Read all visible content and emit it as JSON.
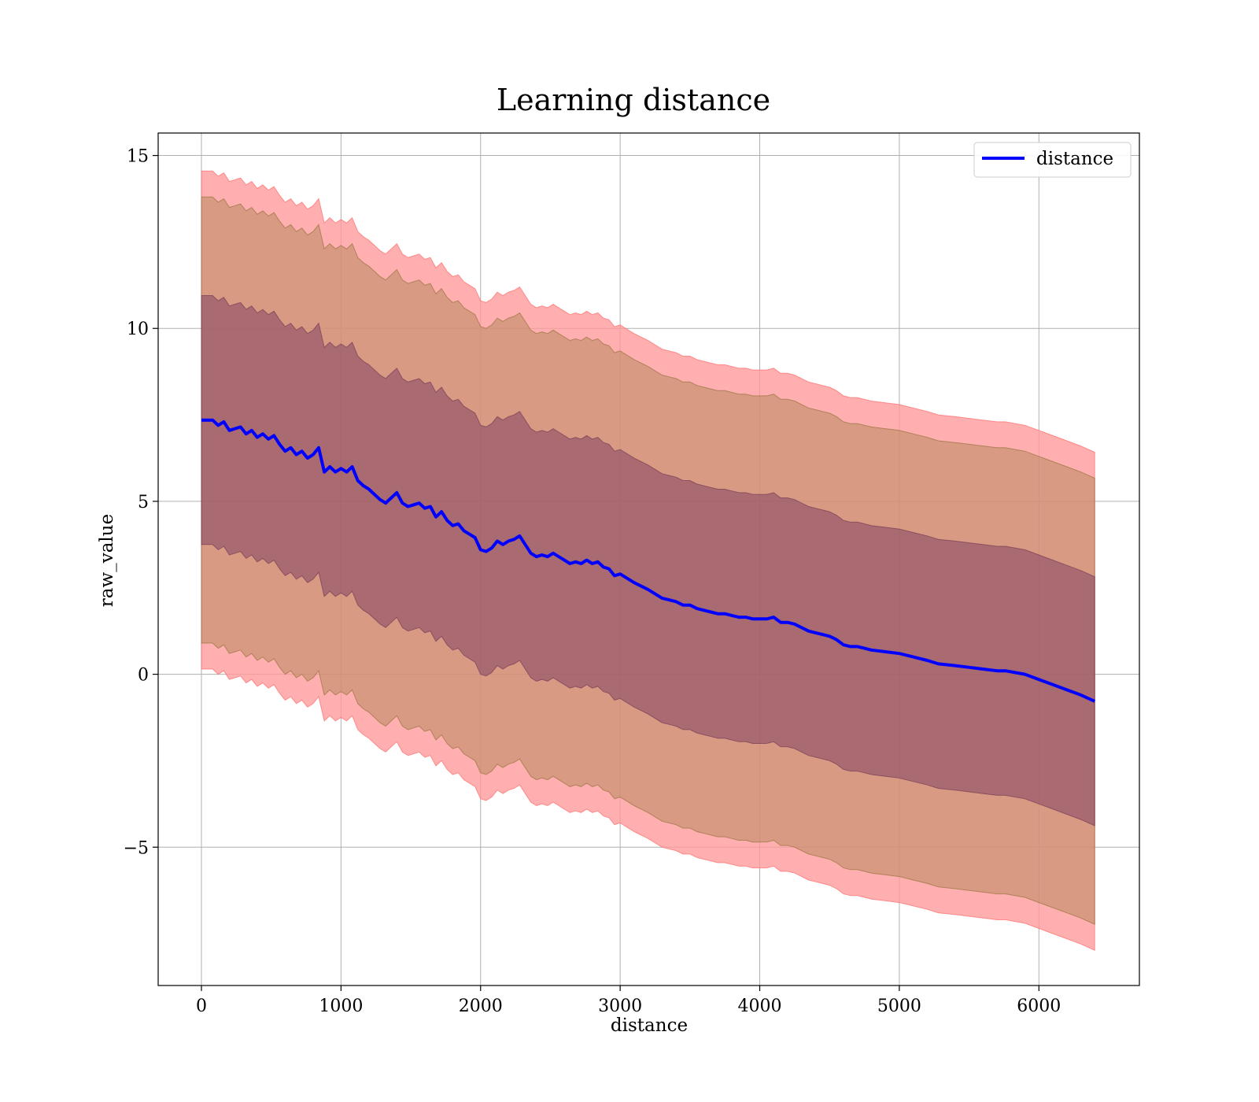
{
  "chart_data": {
    "type": "line",
    "title": "Learning distance",
    "xlabel": "distance",
    "ylabel": "raw_value",
    "xlim": [
      -310,
      6720
    ],
    "ylim": [
      -9,
      15.65
    ],
    "xticks": [
      0,
      1000,
      2000,
      3000,
      4000,
      5000,
      6000
    ],
    "yticks": [
      -5,
      0,
      5,
      10,
      15
    ],
    "ytick_labels": [
      "−5",
      "0",
      "5",
      "10",
      "15"
    ],
    "grid": true,
    "legend": {
      "position": "top-right",
      "entries": [
        {
          "label": "distance",
          "color": "#0000ff"
        }
      ]
    },
    "series": [
      {
        "name": "distance",
        "color": "#0000ff",
        "x": [
          0,
          80,
          120,
          160,
          200,
          240,
          280,
          320,
          360,
          400,
          440,
          480,
          520,
          560,
          600,
          640,
          680,
          720,
          760,
          800,
          840,
          880,
          920,
          960,
          1000,
          1040,
          1080,
          1120,
          1160,
          1200,
          1240,
          1280,
          1320,
          1360,
          1400,
          1440,
          1480,
          1520,
          1560,
          1600,
          1640,
          1680,
          1720,
          1760,
          1800,
          1840,
          1880,
          1920,
          1960,
          2000,
          2040,
          2080,
          2120,
          2160,
          2200,
          2240,
          2280,
          2320,
          2360,
          2400,
          2440,
          2480,
          2520,
          2560,
          2600,
          2640,
          2680,
          2720,
          2760,
          2800,
          2840,
          2880,
          2920,
          2960,
          3000,
          3040,
          3100,
          3200,
          3300,
          3350,
          3400,
          3450,
          3500,
          3550,
          3600,
          3650,
          3700,
          3750,
          3800,
          3850,
          3900,
          3950,
          4000,
          4050,
          4100,
          4150,
          4200,
          4250,
          4300,
          4350,
          4400,
          4450,
          4500,
          4550,
          4600,
          4650,
          4700,
          4750,
          4800,
          4900,
          5000,
          5100,
          5200,
          5280,
          5400,
          5500,
          5600,
          5700,
          5760,
          5900,
          6000,
          6100,
          6200,
          6300,
          6400
        ],
        "values": [
          7.35,
          7.35,
          7.2,
          7.3,
          7.05,
          7.1,
          7.15,
          6.95,
          7.05,
          6.85,
          6.95,
          6.8,
          6.9,
          6.65,
          6.45,
          6.55,
          6.35,
          6.45,
          6.25,
          6.35,
          6.55,
          5.85,
          6.0,
          5.85,
          5.95,
          5.85,
          6.0,
          5.6,
          5.45,
          5.35,
          5.2,
          5.05,
          4.95,
          5.1,
          5.25,
          4.95,
          4.85,
          4.9,
          4.95,
          4.8,
          4.85,
          4.55,
          4.7,
          4.45,
          4.3,
          4.35,
          4.15,
          4.05,
          3.95,
          3.6,
          3.55,
          3.65,
          3.85,
          3.75,
          3.85,
          3.9,
          4.0,
          3.75,
          3.5,
          3.4,
          3.45,
          3.4,
          3.5,
          3.4,
          3.3,
          3.2,
          3.25,
          3.2,
          3.3,
          3.2,
          3.25,
          3.1,
          3.05,
          2.85,
          2.9,
          2.8,
          2.65,
          2.45,
          2.2,
          2.15,
          2.1,
          2.0,
          2.0,
          1.9,
          1.85,
          1.8,
          1.75,
          1.75,
          1.7,
          1.65,
          1.65,
          1.6,
          1.6,
          1.6,
          1.65,
          1.5,
          1.5,
          1.45,
          1.35,
          1.25,
          1.2,
          1.15,
          1.1,
          1.0,
          0.85,
          0.8,
          0.8,
          0.75,
          0.7,
          0.65,
          0.6,
          0.5,
          0.4,
          0.3,
          0.25,
          0.2,
          0.15,
          0.1,
          0.1,
          0.0,
          -0.15,
          -0.3,
          -0.45,
          -0.6,
          -0.78
        ]
      }
    ],
    "bands": [
      {
        "offset": 7.2,
        "fill": "#ff9999",
        "opacity": 0.78,
        "stroke": "#ff5a5a"
      },
      {
        "offset": 6.45,
        "fill": "#b8885e",
        "opacity": 0.55,
        "stroke": "#8a6a30"
      },
      {
        "offset": 3.6,
        "fill": "#7a3c60",
        "opacity": 0.5,
        "stroke": "#6a3050"
      }
    ]
  }
}
